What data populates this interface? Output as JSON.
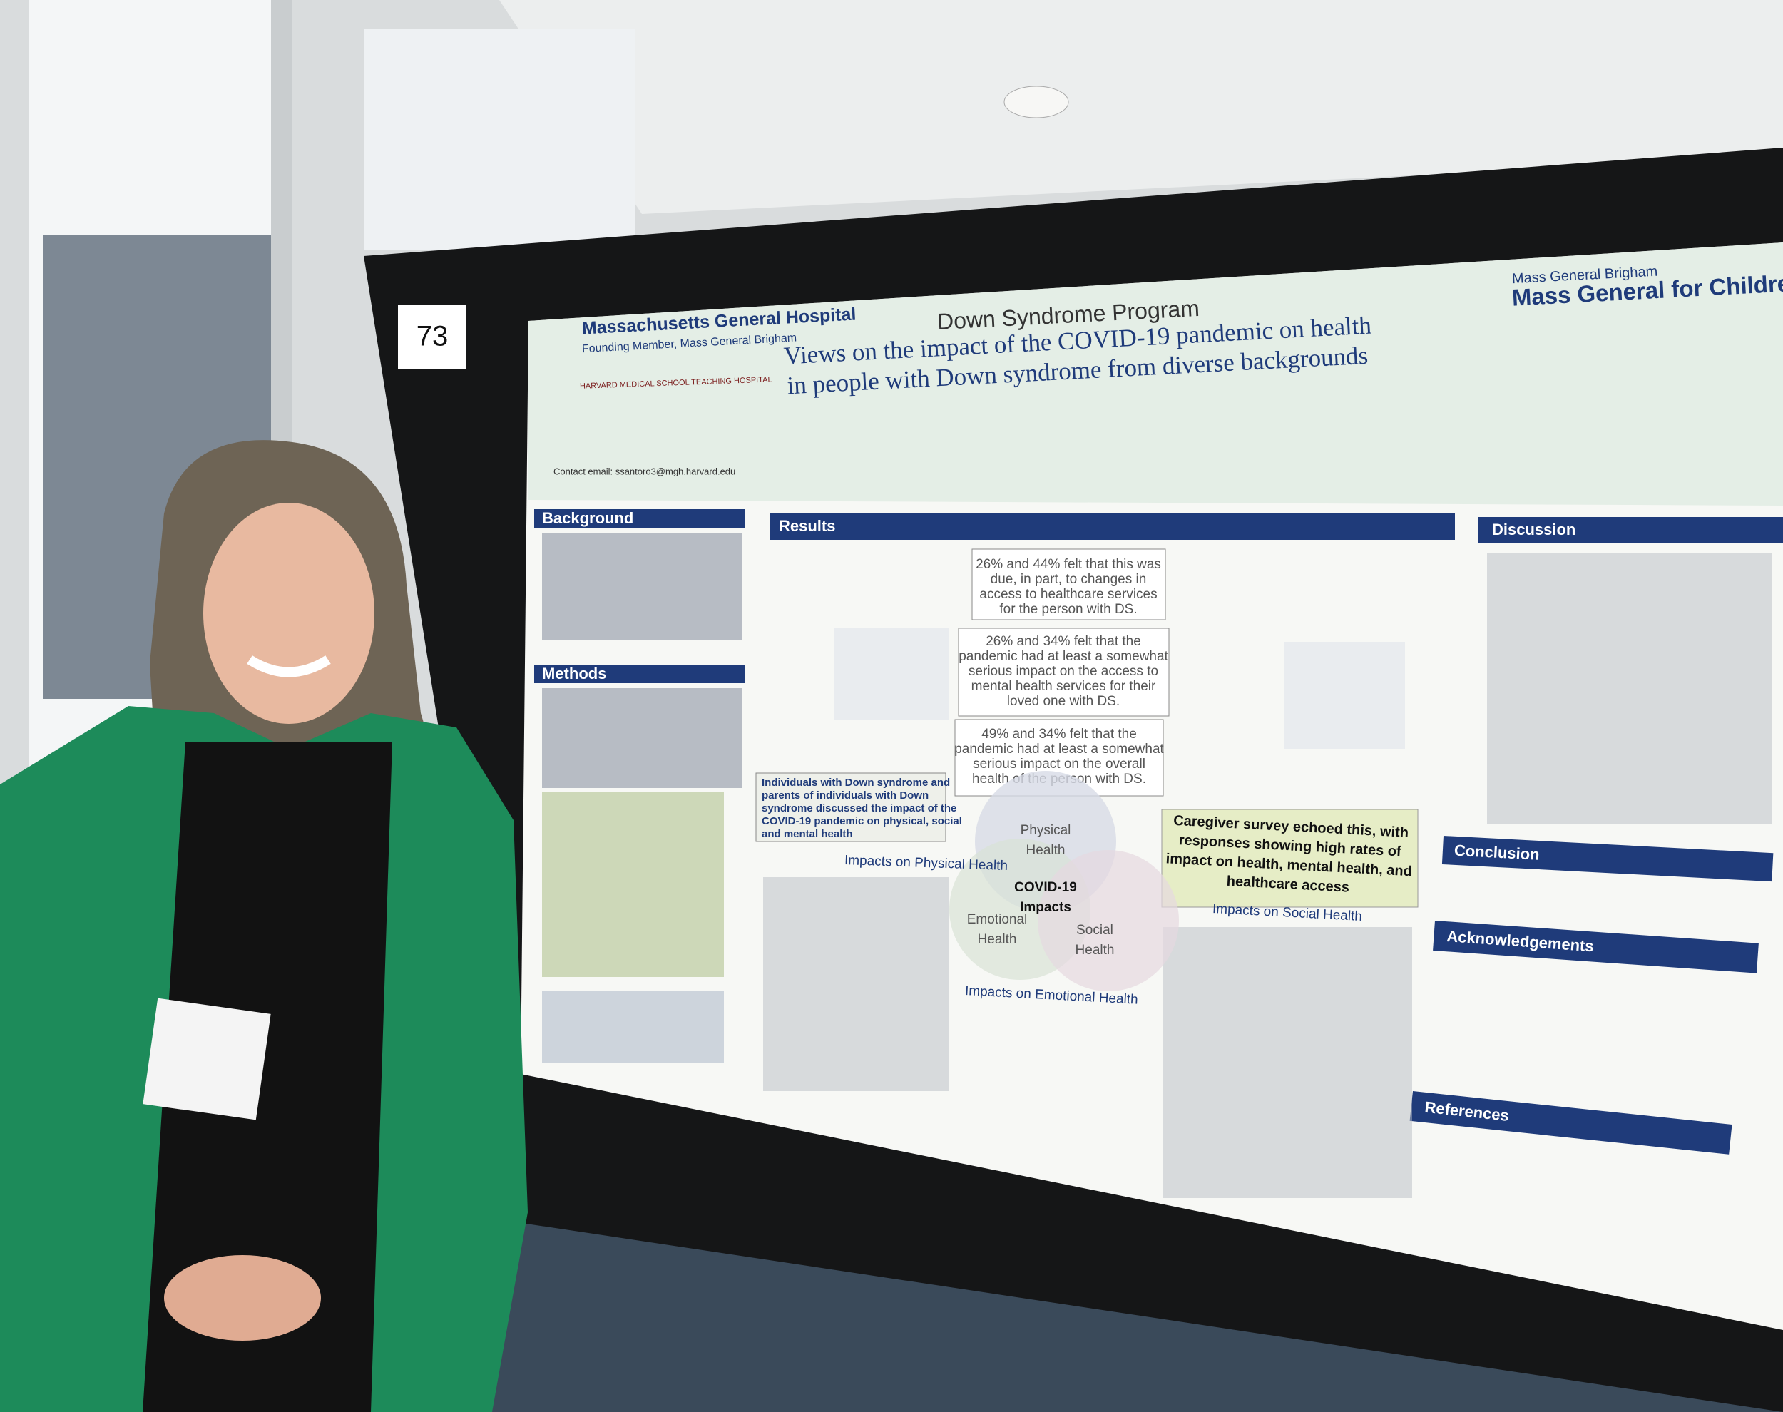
{
  "poster_number": "73",
  "header": {
    "program": "Down Syndrome Program",
    "hospital": "Massachusetts General Hospital",
    "hospital_sub": "Founding Member, Mass General Brigham",
    "harvard": "HARVARD MEDICAL SCHOOL TEACHING HOSPITAL",
    "brand_top": "Mass General Brigham",
    "brand": "Mass General for Children",
    "title": [
      "Views on the impact of the COVID-19 pandemic on health",
      "in people with Down syndrome from diverse backgrounds"
    ],
    "contact": "Contact email: ssantoro3@mgh.harvard.edu"
  },
  "sections": {
    "background": "Background",
    "methods": "Methods",
    "results": "Results",
    "discussion": "Discussion",
    "conclusion": "Conclusion",
    "acknowledgements": "Acknowledgements",
    "references": "References"
  },
  "callouts": [
    {
      "lines": [
        "26% and 44% felt that this was",
        "due, in part, to changes in",
        "access to healthcare services",
        "for the person with DS."
      ]
    },
    {
      "lines": [
        "26% and 34% felt that the",
        "pandemic had at least a somewhat",
        "serious impact on the access to",
        "mental health services for their",
        "loved one with DS."
      ]
    },
    {
      "lines": [
        "49% and 34% felt that the",
        "pandemic had at least a somewhat",
        "serious impact on the overall",
        "health of the person with DS."
      ]
    }
  ],
  "individuals_box": [
    "Individuals with Down syndrome and",
    "parents of individuals with Down",
    "syndrome discussed the impact of the",
    "COVID-19 pandemic on physical, social",
    "and mental health"
  ],
  "caregiver_box": [
    "Caregiver survey echoed this, with",
    "responses showing high rates of",
    "impact on health, mental health, and",
    "healthcare access"
  ],
  "venn": {
    "center": [
      "COVID-19",
      "Impacts"
    ],
    "physical": [
      "Physical",
      "Health"
    ],
    "emotional": [
      "Emotional",
      "Health"
    ],
    "social": [
      "Social",
      "Health"
    ]
  },
  "impacts": {
    "physical": "Impacts on Physical Health",
    "emotional": "Impacts on Emotional Health",
    "social": "Impacts on Social Health"
  }
}
